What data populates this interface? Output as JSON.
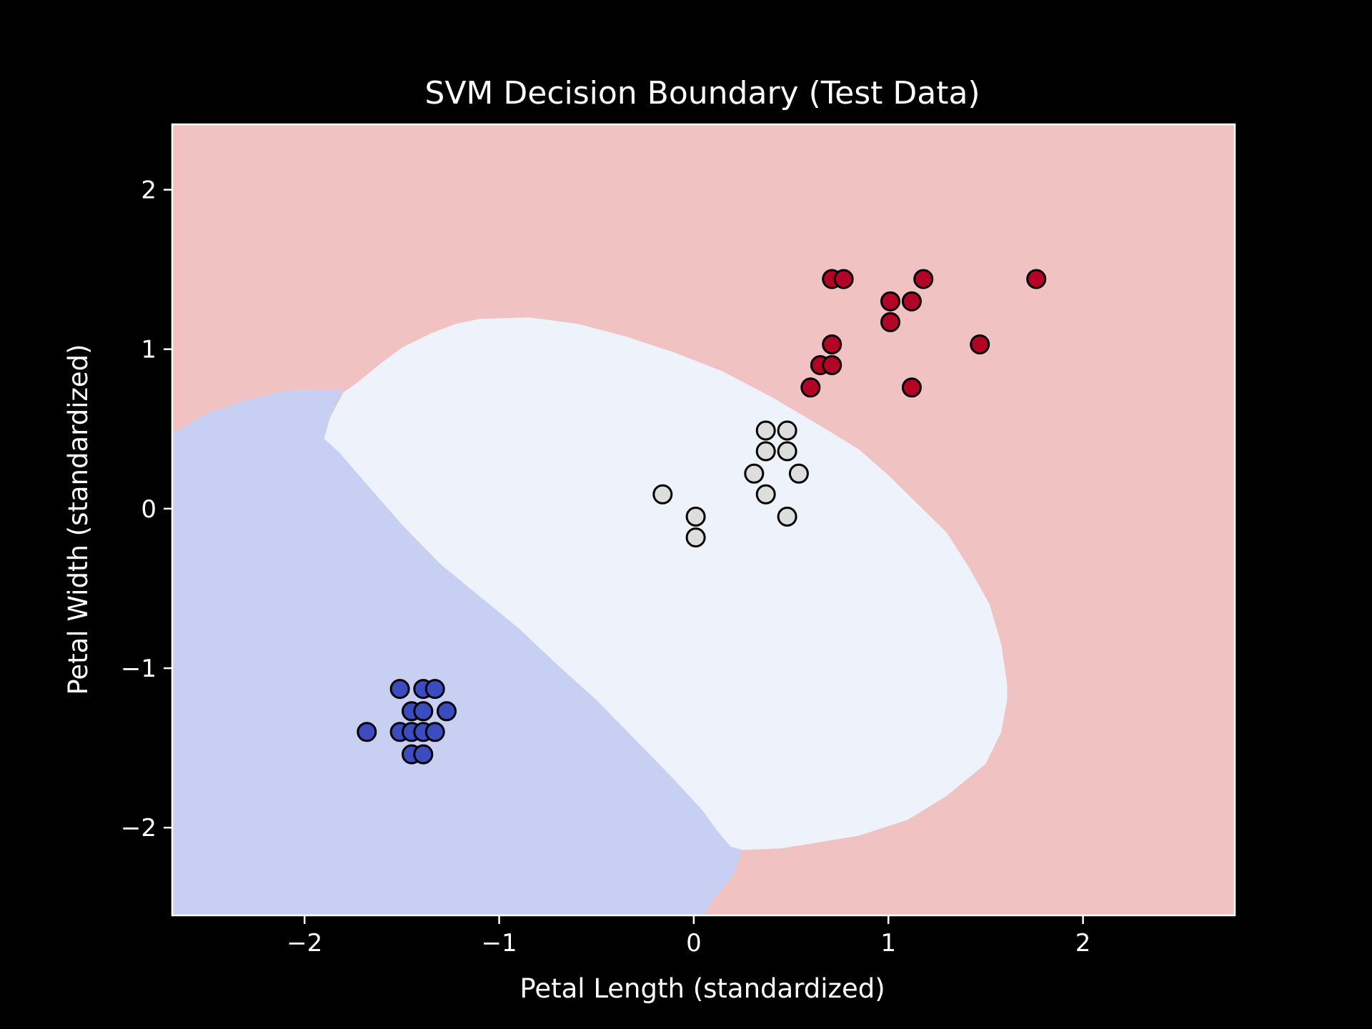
{
  "chart_data": {
    "type": "scatter",
    "title": "SVM Decision Boundary (Test Data)",
    "xlabel": "Petal Length (standardized)",
    "ylabel": "Petal Width (standardized)",
    "xlim": [
      -2.68,
      2.78
    ],
    "ylim": [
      -2.55,
      2.41
    ],
    "x_ticks": [
      -2,
      -1,
      0,
      1,
      2
    ],
    "y_ticks": [
      -2,
      -1,
      0,
      1,
      2
    ],
    "x_tick_labels": [
      "−2",
      "−1",
      "0",
      "1",
      "2"
    ],
    "y_tick_labels": [
      "−2",
      "−1",
      "0",
      "1",
      "2"
    ],
    "grid": false,
    "colors": {
      "background": "#000000",
      "region_red": "#f0c2c1",
      "region_white": "#eef2fb",
      "region_blue": "#c7d0f2",
      "class_blue": "#3b4cc0",
      "class_white": "#dddddd",
      "class_red": "#b40426",
      "marker_edge": "#000000"
    },
    "regions": [
      {
        "class": "red",
        "polygon": [
          [
            -2.68,
            -2.55
          ],
          [
            2.78,
            -2.55
          ],
          [
            2.78,
            2.41
          ],
          [
            -2.68,
            2.41
          ]
        ]
      },
      {
        "class": "white",
        "polygon": [
          [
            -1.9,
            0.44
          ],
          [
            -1.87,
            0.57
          ],
          [
            -1.8,
            0.73
          ],
          [
            -1.73,
            0.79
          ],
          [
            -1.62,
            0.9
          ],
          [
            -1.5,
            1.01
          ],
          [
            -1.35,
            1.1
          ],
          [
            -1.22,
            1.16
          ],
          [
            -1.1,
            1.19
          ],
          [
            -0.85,
            1.2
          ],
          [
            -0.6,
            1.16
          ],
          [
            -0.35,
            1.08
          ],
          [
            -0.1,
            0.98
          ],
          [
            0.15,
            0.86
          ],
          [
            0.4,
            0.7
          ],
          [
            0.65,
            0.52
          ],
          [
            0.85,
            0.37
          ],
          [
            1.0,
            0.21
          ],
          [
            1.15,
            0.03
          ],
          [
            1.3,
            -0.15
          ],
          [
            1.42,
            -0.38
          ],
          [
            1.52,
            -0.6
          ],
          [
            1.58,
            -0.85
          ],
          [
            1.61,
            -1.1
          ],
          [
            1.61,
            -1.2
          ],
          [
            1.58,
            -1.4
          ],
          [
            1.5,
            -1.6
          ],
          [
            1.3,
            -1.8
          ],
          [
            1.1,
            -1.95
          ],
          [
            0.85,
            -2.05
          ],
          [
            0.6,
            -2.1
          ],
          [
            0.45,
            -2.13
          ],
          [
            0.25,
            -2.14
          ],
          [
            0.19,
            -2.12
          ],
          [
            0.12,
            -2.02
          ],
          [
            0.05,
            -1.9
          ],
          [
            -0.1,
            -1.7
          ],
          [
            -0.3,
            -1.45
          ],
          [
            -0.5,
            -1.2
          ],
          [
            -0.7,
            -0.98
          ],
          [
            -0.9,
            -0.75
          ],
          [
            -1.1,
            -0.55
          ],
          [
            -1.3,
            -0.35
          ],
          [
            -1.5,
            -0.1
          ],
          [
            -1.7,
            0.18
          ],
          [
            -1.82,
            0.35
          ]
        ]
      },
      {
        "class": "blue",
        "polygon": [
          [
            -2.68,
            -2.55
          ],
          [
            -2.68,
            0.47
          ],
          [
            -2.5,
            0.6
          ],
          [
            -2.3,
            0.68
          ],
          [
            -2.1,
            0.74
          ],
          [
            -1.8,
            0.75
          ],
          [
            -1.87,
            0.57
          ],
          [
            -1.9,
            0.44
          ],
          [
            -1.82,
            0.35
          ],
          [
            -1.7,
            0.18
          ],
          [
            -1.5,
            -0.1
          ],
          [
            -1.3,
            -0.35
          ],
          [
            -1.1,
            -0.55
          ],
          [
            -0.9,
            -0.75
          ],
          [
            -0.7,
            -0.98
          ],
          [
            -0.5,
            -1.2
          ],
          [
            -0.3,
            -1.45
          ],
          [
            -0.1,
            -1.7
          ],
          [
            0.05,
            -1.9
          ],
          [
            0.12,
            -2.02
          ],
          [
            0.19,
            -2.12
          ],
          [
            0.25,
            -2.14
          ],
          [
            0.2,
            -2.3
          ],
          [
            0.1,
            -2.45
          ],
          [
            0.05,
            -2.55
          ]
        ]
      }
    ],
    "series": [
      {
        "class": "blue",
        "points": [
          [
            -1.68,
            -1.4
          ],
          [
            -1.51,
            -1.13
          ],
          [
            -1.51,
            -1.4
          ],
          [
            -1.45,
            -1.27
          ],
          [
            -1.45,
            -1.4
          ],
          [
            -1.45,
            -1.54
          ],
          [
            -1.39,
            -1.13
          ],
          [
            -1.39,
            -1.27
          ],
          [
            -1.39,
            -1.4
          ],
          [
            -1.39,
            -1.54
          ],
          [
            -1.33,
            -1.13
          ],
          [
            -1.33,
            -1.4
          ],
          [
            -1.27,
            -1.27
          ]
        ]
      },
      {
        "class": "white",
        "points": [
          [
            -0.16,
            0.09
          ],
          [
            0.01,
            -0.05
          ],
          [
            0.01,
            -0.18
          ],
          [
            0.31,
            0.22
          ],
          [
            0.37,
            0.49
          ],
          [
            0.37,
            0.36
          ],
          [
            0.37,
            0.09
          ],
          [
            0.48,
            0.49
          ],
          [
            0.48,
            0.36
          ],
          [
            0.48,
            -0.05
          ],
          [
            0.54,
            0.22
          ]
        ]
      },
      {
        "class": "red",
        "points": [
          [
            0.6,
            0.76
          ],
          [
            0.65,
            0.9
          ],
          [
            0.71,
            0.9
          ],
          [
            0.71,
            1.03
          ],
          [
            0.71,
            1.44
          ],
          [
            0.77,
            1.44
          ],
          [
            1.01,
            1.3
          ],
          [
            1.01,
            1.17
          ],
          [
            1.12,
            1.3
          ],
          [
            1.12,
            0.76
          ],
          [
            1.18,
            1.44
          ],
          [
            1.47,
            1.03
          ],
          [
            1.76,
            1.44
          ]
        ]
      }
    ]
  }
}
